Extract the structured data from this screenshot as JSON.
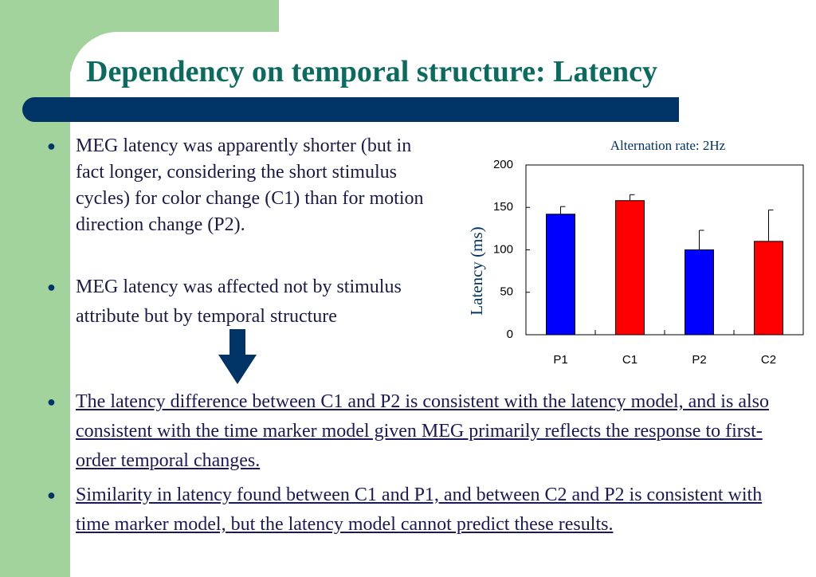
{
  "title": "Dependency on temporal structure: Latency",
  "bullets": [
    "MEG latency was apparently shorter (but in fact longer, considering the short stimulus cycles) for color change (C1) than for motion direction change (P2).",
    "MEG latency was affected not by stimulus attribute but by temporal structure",
    "The latency difference between C1 and P2 is consistent with the latency model, and is also consistent with the time marker model given MEG primarily reflects the response to first-order temporal changes.",
    "Similarity in latency found between C1 and P1, and between C2 and P2 is consistent with time marker model, but the latency model cannot predict these results."
  ],
  "chart_data": {
    "type": "bar",
    "title": "Alternation rate: 2Hz",
    "y_label": "Latency (ms)",
    "categories": [
      "P1",
      "C1",
      "P2",
      "C2"
    ],
    "values": [
      142,
      158,
      100,
      110
    ],
    "errors": [
      9,
      7,
      23,
      37
    ],
    "colors": [
      "#0000ff",
      "#ff0000",
      "#0000ff",
      "#ff0000"
    ],
    "ylim": [
      0,
      200
    ],
    "yticks": [
      0,
      50,
      100,
      150,
      200
    ]
  }
}
